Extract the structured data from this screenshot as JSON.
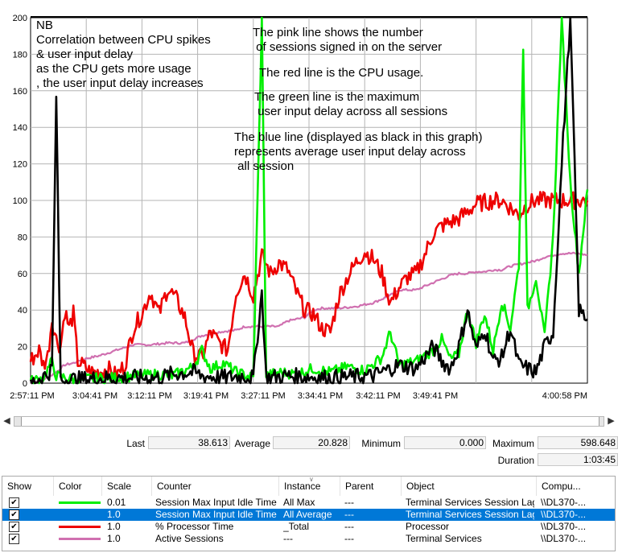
{
  "chart": {
    "y_ticks": [
      "0",
      "20",
      "40",
      "60",
      "80",
      "100",
      "120",
      "140",
      "160",
      "180",
      "200"
    ],
    "x_ticks": [
      "2:57:11 PM",
      "3:04:41 PM",
      "3:12:11 PM",
      "3:19:41 PM",
      "3:27:11 PM",
      "3:34:41 PM",
      "3:42:11 PM",
      "3:49:41 PM",
      "4:00:58 PM"
    ],
    "ylim": [
      0,
      200
    ],
    "grid": true
  },
  "chart_data": {
    "type": "line",
    "ylim": [
      0,
      200
    ],
    "x_ticks": [
      "2:57:11 PM",
      "3:04:41 PM",
      "3:12:11 PM",
      "3:19:41 PM",
      "3:27:11 PM",
      "3:34:41 PM",
      "3:42:11 PM",
      "3:49:41 PM",
      "4:00:58 PM"
    ],
    "series": [
      {
        "name": "Session Max Input Idle Time",
        "color": "#00ee00",
        "points": [
          [
            0,
            1
          ],
          [
            3,
            3
          ],
          [
            5,
            12
          ],
          [
            6,
            4
          ],
          [
            10,
            2
          ],
          [
            20,
            3
          ],
          [
            30,
            5
          ],
          [
            33,
            4
          ],
          [
            38,
            9
          ],
          [
            40,
            18
          ],
          [
            42,
            8
          ],
          [
            45,
            11
          ],
          [
            48,
            6
          ],
          [
            52,
            3
          ],
          [
            54,
            200
          ],
          [
            55,
            4
          ],
          [
            58,
            6
          ],
          [
            62,
            5
          ],
          [
            66,
            8
          ],
          [
            70,
            6
          ],
          [
            74,
            9
          ],
          [
            78,
            7
          ],
          [
            82,
            14
          ],
          [
            84,
            28
          ],
          [
            86,
            10
          ],
          [
            90,
            12
          ],
          [
            94,
            18
          ],
          [
            96,
            24
          ],
          [
            98,
            13
          ],
          [
            100,
            16
          ],
          [
            102,
            40
          ],
          [
            104,
            22
          ],
          [
            106,
            38
          ],
          [
            108,
            18
          ],
          [
            110,
            45
          ],
          [
            112,
            30
          ],
          [
            114,
            65
          ],
          [
            115,
            185
          ],
          [
            116,
            40
          ],
          [
            118,
            58
          ],
          [
            120,
            25
          ],
          [
            122,
            80
          ],
          [
            124,
            200
          ],
          [
            126,
            110
          ],
          [
            128,
            60
          ],
          [
            130,
            106
          ]
        ]
      },
      {
        "name": "Session Max Input Idle Time (All Average)",
        "color": "#000000",
        "points": [
          [
            0,
            0
          ],
          [
            4,
            5
          ],
          [
            5,
            8
          ],
          [
            6,
            158
          ],
          [
            7,
            2
          ],
          [
            10,
            2
          ],
          [
            20,
            3
          ],
          [
            30,
            3
          ],
          [
            33,
            5
          ],
          [
            38,
            6
          ],
          [
            40,
            4
          ],
          [
            45,
            3
          ],
          [
            50,
            4
          ],
          [
            52,
            3
          ],
          [
            54,
            50
          ],
          [
            55,
            3
          ],
          [
            60,
            4
          ],
          [
            70,
            3
          ],
          [
            80,
            4
          ],
          [
            86,
            10
          ],
          [
            90,
            8
          ],
          [
            94,
            20
          ],
          [
            96,
            12
          ],
          [
            98,
            8
          ],
          [
            100,
            20
          ],
          [
            102,
            40
          ],
          [
            104,
            18
          ],
          [
            106,
            30
          ],
          [
            108,
            12
          ],
          [
            110,
            14
          ],
          [
            112,
            30
          ],
          [
            114,
            10
          ],
          [
            116,
            8
          ],
          [
            118,
            6
          ],
          [
            120,
            20
          ],
          [
            122,
            28
          ],
          [
            124,
            120
          ],
          [
            126,
            200
          ],
          [
            128,
            40
          ],
          [
            130,
            35
          ]
        ]
      },
      {
        "name": "% Processor Time",
        "color": "#ee0000",
        "points": [
          [
            0,
            12
          ],
          [
            2,
            18
          ],
          [
            3,
            10
          ],
          [
            4,
            15
          ],
          [
            5,
            35
          ],
          [
            6,
            24
          ],
          [
            7,
            20
          ],
          [
            8,
            40
          ],
          [
            9,
            30
          ],
          [
            10,
            38
          ],
          [
            11,
            12
          ],
          [
            12,
            10
          ],
          [
            14,
            6
          ],
          [
            16,
            6
          ],
          [
            18,
            8
          ],
          [
            20,
            4
          ],
          [
            22,
            10
          ],
          [
            24,
            30
          ],
          [
            26,
            38
          ],
          [
            28,
            50
          ],
          [
            30,
            38
          ],
          [
            32,
            52
          ],
          [
            34,
            46
          ],
          [
            36,
            36
          ],
          [
            38,
            16
          ],
          [
            40,
            14
          ],
          [
            42,
            28
          ],
          [
            44,
            22
          ],
          [
            46,
            18
          ],
          [
            48,
            50
          ],
          [
            50,
            60
          ],
          [
            52,
            48
          ],
          [
            54,
            70
          ],
          [
            56,
            60
          ],
          [
            58,
            66
          ],
          [
            60,
            62
          ],
          [
            62,
            50
          ],
          [
            64,
            40
          ],
          [
            66,
            38
          ],
          [
            68,
            30
          ],
          [
            70,
            28
          ],
          [
            72,
            48
          ],
          [
            74,
            58
          ],
          [
            76,
            66
          ],
          [
            78,
            72
          ],
          [
            80,
            68
          ],
          [
            82,
            60
          ],
          [
            84,
            44
          ],
          [
            86,
            52
          ],
          [
            88,
            58
          ],
          [
            90,
            60
          ],
          [
            92,
            70
          ],
          [
            94,
            82
          ],
          [
            96,
            86
          ],
          [
            98,
            88
          ],
          [
            100,
            90
          ],
          [
            102,
            94
          ],
          [
            104,
            98
          ],
          [
            106,
            99
          ],
          [
            108,
            100
          ],
          [
            110,
            100
          ],
          [
            112,
            96
          ],
          [
            114,
            92
          ],
          [
            116,
            98
          ],
          [
            118,
            100
          ],
          [
            120,
            100
          ],
          [
            122,
            100
          ],
          [
            124,
            100
          ],
          [
            126,
            100
          ],
          [
            128,
            100
          ],
          [
            130,
            100
          ]
        ]
      },
      {
        "name": "Active Sessions",
        "color": "#d070b0",
        "points": [
          [
            0,
            0
          ],
          [
            4,
            3
          ],
          [
            6,
            6
          ],
          [
            8,
            10
          ],
          [
            10,
            11
          ],
          [
            12,
            13
          ],
          [
            16,
            15
          ],
          [
            20,
            18
          ],
          [
            24,
            21
          ],
          [
            28,
            21
          ],
          [
            32,
            22
          ],
          [
            36,
            22
          ],
          [
            40,
            26
          ],
          [
            44,
            28
          ],
          [
            48,
            29
          ],
          [
            50,
            31
          ],
          [
            54,
            31
          ],
          [
            56,
            31
          ],
          [
            58,
            31
          ],
          [
            60,
            34
          ],
          [
            64,
            36
          ],
          [
            66,
            40
          ],
          [
            68,
            41
          ],
          [
            72,
            41
          ],
          [
            76,
            42
          ],
          [
            80,
            44
          ],
          [
            82,
            46
          ],
          [
            84,
            48
          ],
          [
            86,
            51
          ],
          [
            88,
            51
          ],
          [
            90,
            51
          ],
          [
            92,
            53
          ],
          [
            94,
            55
          ],
          [
            96,
            57
          ],
          [
            98,
            59
          ],
          [
            100,
            60
          ],
          [
            102,
            60
          ],
          [
            104,
            61
          ],
          [
            106,
            61
          ],
          [
            108,
            62
          ],
          [
            110,
            62
          ],
          [
            112,
            64
          ],
          [
            114,
            65
          ],
          [
            116,
            66
          ],
          [
            118,
            67
          ],
          [
            120,
            69
          ],
          [
            122,
            70
          ],
          [
            124,
            71
          ],
          [
            126,
            71
          ],
          [
            128,
            71
          ],
          [
            130,
            70
          ]
        ]
      }
    ]
  },
  "annotations": {
    "nb": "NB\nCorrelation between CPU spikes\n& user input delay\nas the CPU gets more usage\n, the user input delay increases",
    "pink": "The pink line shows the number\n of sessions signed in on the server",
    "red": "The red line is the CPU usage.",
    "green": "The green line is the maximum\n user input delay across all sessions",
    "blue": "The blue line (displayed as black in this graph)\nrepresents average user input delay across\n all session"
  },
  "stats": {
    "last_label": "Last",
    "last_value": "38.613",
    "average_label": "Average",
    "average_value": "20.828",
    "minimum_label": "Minimum",
    "minimum_value": "0.000",
    "maximum_label": "Maximum",
    "maximum_value": "598.648",
    "duration_label": "Duration",
    "duration_value": "1:03:45"
  },
  "table": {
    "headers": {
      "show": "Show",
      "color": "Color",
      "scale": "Scale",
      "counter": "Counter",
      "instance": "Instance",
      "parent": "Parent",
      "object": "Object",
      "computer": "Compu..."
    },
    "rows": [
      {
        "color": "#00ee00",
        "scale": "0.01",
        "counter": "Session Max Input Idle Time",
        "instance": "All Max",
        "parent": "---",
        "object": "Terminal Services Session Lag",
        "computer": "\\\\DL370-...",
        "selected": false
      },
      {
        "color": "#0078d7",
        "scale": "1.0",
        "counter": "Session Max Input Idle Time",
        "instance": "All Average",
        "parent": "---",
        "object": "Terminal Services Session Lag",
        "computer": "\\\\DL370-...",
        "selected": true
      },
      {
        "color": "#ee0000",
        "scale": "1.0",
        "counter": "% Processor Time",
        "instance": "_Total",
        "parent": "---",
        "object": "Processor",
        "computer": "\\\\DL370-...",
        "selected": false
      },
      {
        "color": "#d070b0",
        "scale": "1.0",
        "counter": "Active Sessions",
        "instance": "---",
        "parent": "---",
        "object": "Terminal Services",
        "computer": "\\\\DL370-...",
        "selected": false
      }
    ]
  }
}
